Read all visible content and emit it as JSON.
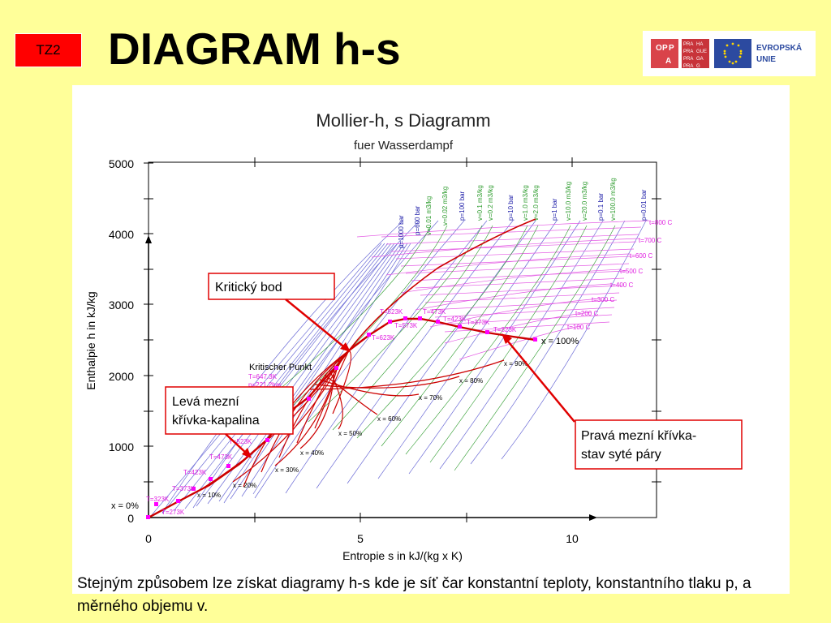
{
  "slide": {
    "tag": "TZ2",
    "title": "DIAGRAM h-s",
    "caption": "Stejným způsobem lze získat diagramy h-s kde je síť čar konstantní teploty, konstantního tlaku p, a měrného objemu v."
  },
  "logo": {
    "opp_letters": [
      "O",
      "P",
      "P",
      "A"
    ],
    "praha_lines": [
      "PRA",
      "HA",
      "PRA",
      "GUE",
      "PRA",
      "GA",
      "PRA",
      "G"
    ],
    "eu_text": [
      "EVROPSKÁ",
      "UNIE"
    ]
  },
  "chart": {
    "title": "Mollier-h, s Diagramm",
    "subtitle": "fuer Wasserdampf",
    "xlabel": "Entropie s in kJ/(kg x K)",
    "ylabel": "Enthalpie h in kJ/kg",
    "x_ticks": [
      "0",
      "5",
      "10"
    ],
    "y_ticks": [
      "0",
      "1000",
      "2000",
      "3000",
      "4000",
      "5000"
    ],
    "pressure_labels": [
      "p=1000 bar",
      "p=600 bar",
      "p=100 bar",
      "p=10 bar",
      "p=1 bar",
      "p=0.1 bar",
      "p=0.01 bar"
    ],
    "volume_labels": [
      "v=0.01 m3/kg",
      "v=0.02 m3/kg",
      "v=0.1 m3/kg",
      "v=0.2 m3/kg",
      "v=1.0 m3/kg",
      "v=2.0 m3/kg",
      "v=10.0 m3/kg",
      "v=20.0 m3/kg",
      "v=100.0 m3/kg"
    ],
    "temp_labels": [
      "t=800 C",
      "t=700 C",
      "t=600 C",
      "t=500 C",
      "t=400 C",
      "t=300 C",
      "t=200 C",
      "t=100 C"
    ],
    "quality_labels": [
      "x = 0%",
      "x = 10%",
      "x = 20%",
      "x = 30%",
      "x = 40%",
      "x = 50%",
      "x = 60%",
      "x = 70%",
      "x = 80%",
      "x = 90%",
      "x = 100%"
    ],
    "left_sat_labels": [
      "T=273K",
      "T=323K",
      "T=373K",
      "T=423K",
      "T=473K",
      "T=523K"
    ],
    "right_sat_labels": [
      "T=523K",
      "T=473K",
      "T=573K",
      "T=423K",
      "T=373K",
      "T=623K",
      "T=323K"
    ],
    "critical_title": "Kritischer Punkt",
    "critical_lines": [
      "T=647.3K",
      "p=221.2bar"
    ]
  },
  "callouts": {
    "critical": "Kritický bod",
    "left_line1": "Levá mezní",
    "left_line2": "křívka-kapalina",
    "right_line1": "Pravá mezní křívka-",
    "right_line2": "stav syté páry"
  },
  "colors": {
    "background": "#ffff99",
    "tag": "#ff0000",
    "grid_blue": "#6b6bd6",
    "grid_magenta": "#e45ae4",
    "saturation": "#cc0000",
    "volume_green": "#2a9a2a",
    "callout_border": "#e00000"
  }
}
